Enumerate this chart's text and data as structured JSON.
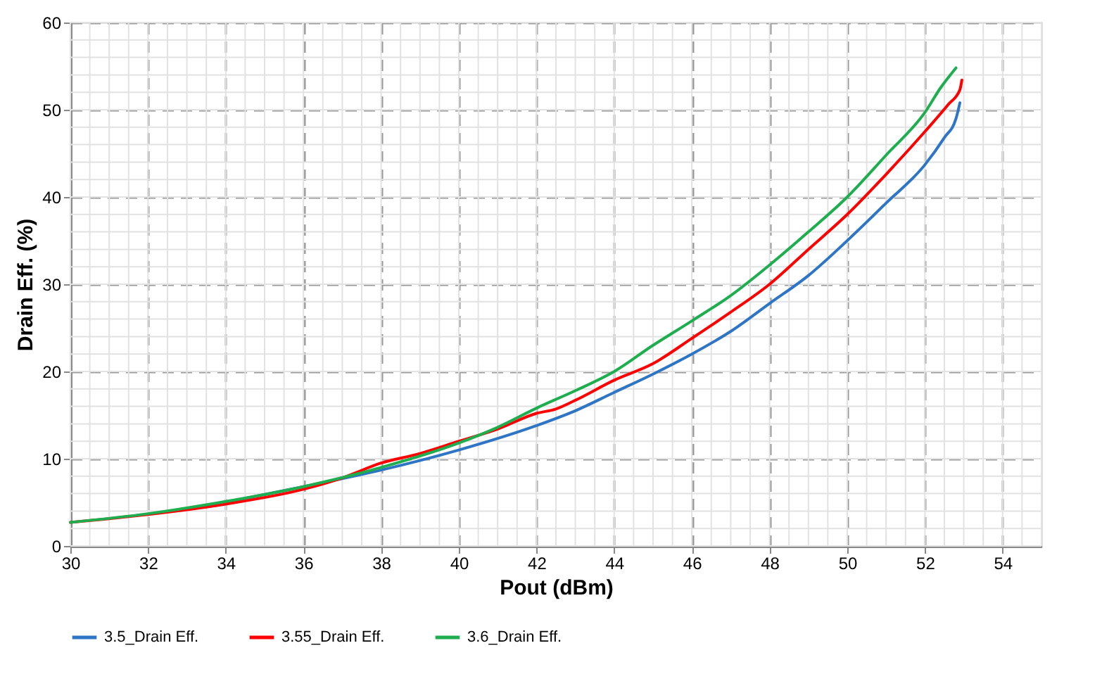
{
  "chart_data": {
    "type": "line",
    "xlabel": "Pout (dBm)",
    "ylabel": "Drain Eff. (%)",
    "xlim": [
      30,
      55
    ],
    "xticks": [
      30,
      32,
      34,
      36,
      38,
      40,
      42,
      44,
      46,
      48,
      50,
      52,
      54
    ],
    "ylim": [
      0,
      60
    ],
    "yticks": [
      0,
      10,
      20,
      30,
      40,
      50,
      60
    ],
    "grid": true,
    "legend": "bottom",
    "marker": "none",
    "line_style": "solid",
    "series": [
      {
        "name": "3.5_Drain Eff.",
        "color": "#2e75c6",
        "x": [
          34,
          36,
          38,
          40,
          42,
          43,
          44,
          45,
          46,
          47,
          48,
          49,
          50,
          51,
          52,
          52.5,
          52.8,
          52.9
        ],
        "values": [
          5.0,
          6.8,
          8.7,
          11,
          13.8,
          15.5,
          17.6,
          19.7,
          22,
          24.6,
          27.8,
          31,
          35,
          39.3,
          43.7,
          46.8,
          49,
          50.8
        ]
      },
      {
        "name": "3.55_Drain Eff.",
        "color": "#ff0000",
        "x": [
          30,
          32,
          34,
          36,
          37,
          38,
          39,
          40,
          41,
          42,
          42.5,
          43,
          44,
          45,
          46,
          47,
          48,
          49,
          50,
          51,
          52,
          52.6,
          52.9,
          52.95
        ],
        "values": [
          2.7,
          3.6,
          4.8,
          6.5,
          7.8,
          9.5,
          10.6,
          12,
          13.4,
          15.2,
          15.7,
          16.7,
          19,
          20.9,
          23.8,
          26.8,
          30,
          34,
          38,
          42.6,
          47.5,
          50.6,
          52.3,
          53.4
        ]
      },
      {
        "name": "3.6_Drain Eff.",
        "color": "#1fae4f",
        "x": [
          30,
          32,
          34,
          36,
          38,
          40,
          41,
          42,
          43,
          44,
          45,
          46,
          47,
          48,
          49,
          50,
          51,
          52,
          52.4,
          52.8
        ],
        "values": [
          2.7,
          3.7,
          5.1,
          6.8,
          9,
          11.8,
          13.6,
          15.8,
          17.8,
          20,
          23,
          25.8,
          28.7,
          32.2,
          36,
          40,
          44.8,
          49.7,
          52.5,
          54.8
        ]
      }
    ]
  }
}
